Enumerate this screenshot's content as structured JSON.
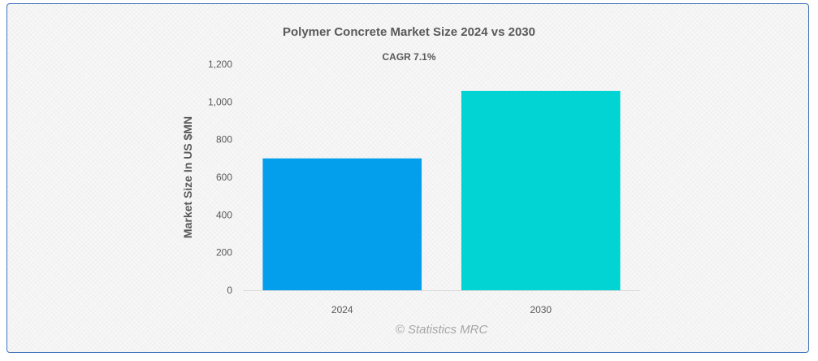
{
  "chart_data": {
    "type": "bar",
    "title": "Polymer Concrete Market Size 2024 vs 2030",
    "subtitle": "CAGR 7.1%",
    "ylabel": "Market Size In US $MN",
    "xlabel": "",
    "categories": [
      "2024",
      "2030"
    ],
    "values": [
      700,
      1058
    ],
    "colors": [
      "#039fec",
      "#02d3d3"
    ],
    "ylim": [
      0,
      1200
    ],
    "yticks": [
      0,
      200,
      400,
      600,
      800,
      1000,
      1200
    ],
    "ytick_labels": [
      "0",
      "200",
      "400",
      "600",
      "800",
      "1,000",
      "1,200"
    ],
    "grid": false,
    "legend": "none"
  },
  "watermark": "© Statistics MRC"
}
